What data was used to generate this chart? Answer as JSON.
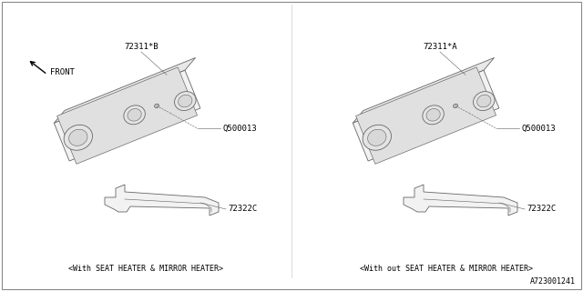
{
  "background_color": "#ffffff",
  "fig_width": 6.4,
  "fig_height": 3.2,
  "dpi": 100,
  "left_label": "<With SEAT HEATER & MIRROR HEATER>",
  "right_label": "<With out SEAT HEATER & MIRROR HEATER>",
  "part_72311B": "72311*B",
  "part_72311A": "72311*A",
  "part_Q500013": "Q500013",
  "part_72322C": "72322C",
  "front_label": "FRONT",
  "diagram_id": "A723001241",
  "line_color": "#555555",
  "text_color": "#000000"
}
